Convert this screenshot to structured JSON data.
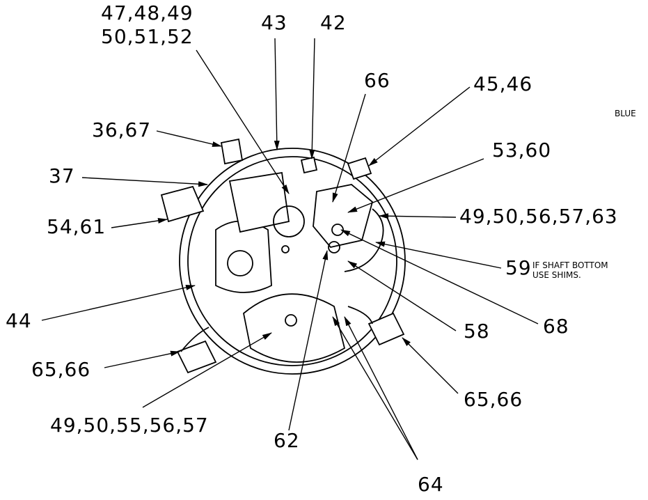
{
  "callouts": [
    "47,48,49",
    "50,51,52",
    "43",
    "42",
    "66",
    "45,46",
    "36,67",
    "53,60",
    "37",
    "49,50,56,57,63",
    "54,61",
    "59",
    "44",
    "58",
    "68",
    "65,66",
    "65,66",
    "49,50,55,56,57",
    "62",
    "64"
  ],
  "notes": [
    "BLUE",
    "IF SHAFT BOTTOM",
    "USE SHIMS."
  ]
}
